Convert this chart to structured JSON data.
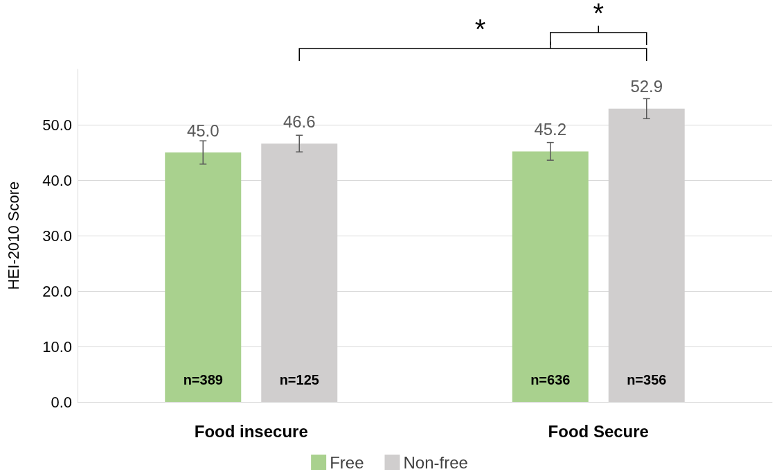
{
  "chart_data": {
    "type": "bar",
    "ylabel": "HEI-2010 Score",
    "categories": [
      "Food insecure",
      "Food Secure"
    ],
    "series": [
      {
        "name": "Free",
        "color": "#a9d18e",
        "values": [
          45.0,
          45.2
        ],
        "errors": [
          2.1,
          1.6
        ],
        "value_labels": [
          "45.0",
          "45.2"
        ]
      },
      {
        "name": "Non-free",
        "color": "#d0cece",
        "values": [
          46.6,
          52.9
        ],
        "errors": [
          1.5,
          1.8
        ],
        "value_labels": [
          "46.6",
          "52.9"
        ]
      }
    ],
    "ylim": [
      0,
      60
    ],
    "yticks": [
      {
        "value": 0,
        "label": "0.0"
      },
      {
        "value": 10,
        "label": "10.0"
      },
      {
        "value": 20,
        "label": "20.0"
      },
      {
        "value": 30,
        "label": "30.0"
      },
      {
        "value": 40,
        "label": "40.0"
      },
      {
        "value": 50,
        "label": "50.0"
      }
    ],
    "grid": "y",
    "legend": "bottom",
    "annotations": [
      "n=389",
      "n=125",
      "n=636",
      "n=356",
      "*",
      "*"
    ]
  }
}
